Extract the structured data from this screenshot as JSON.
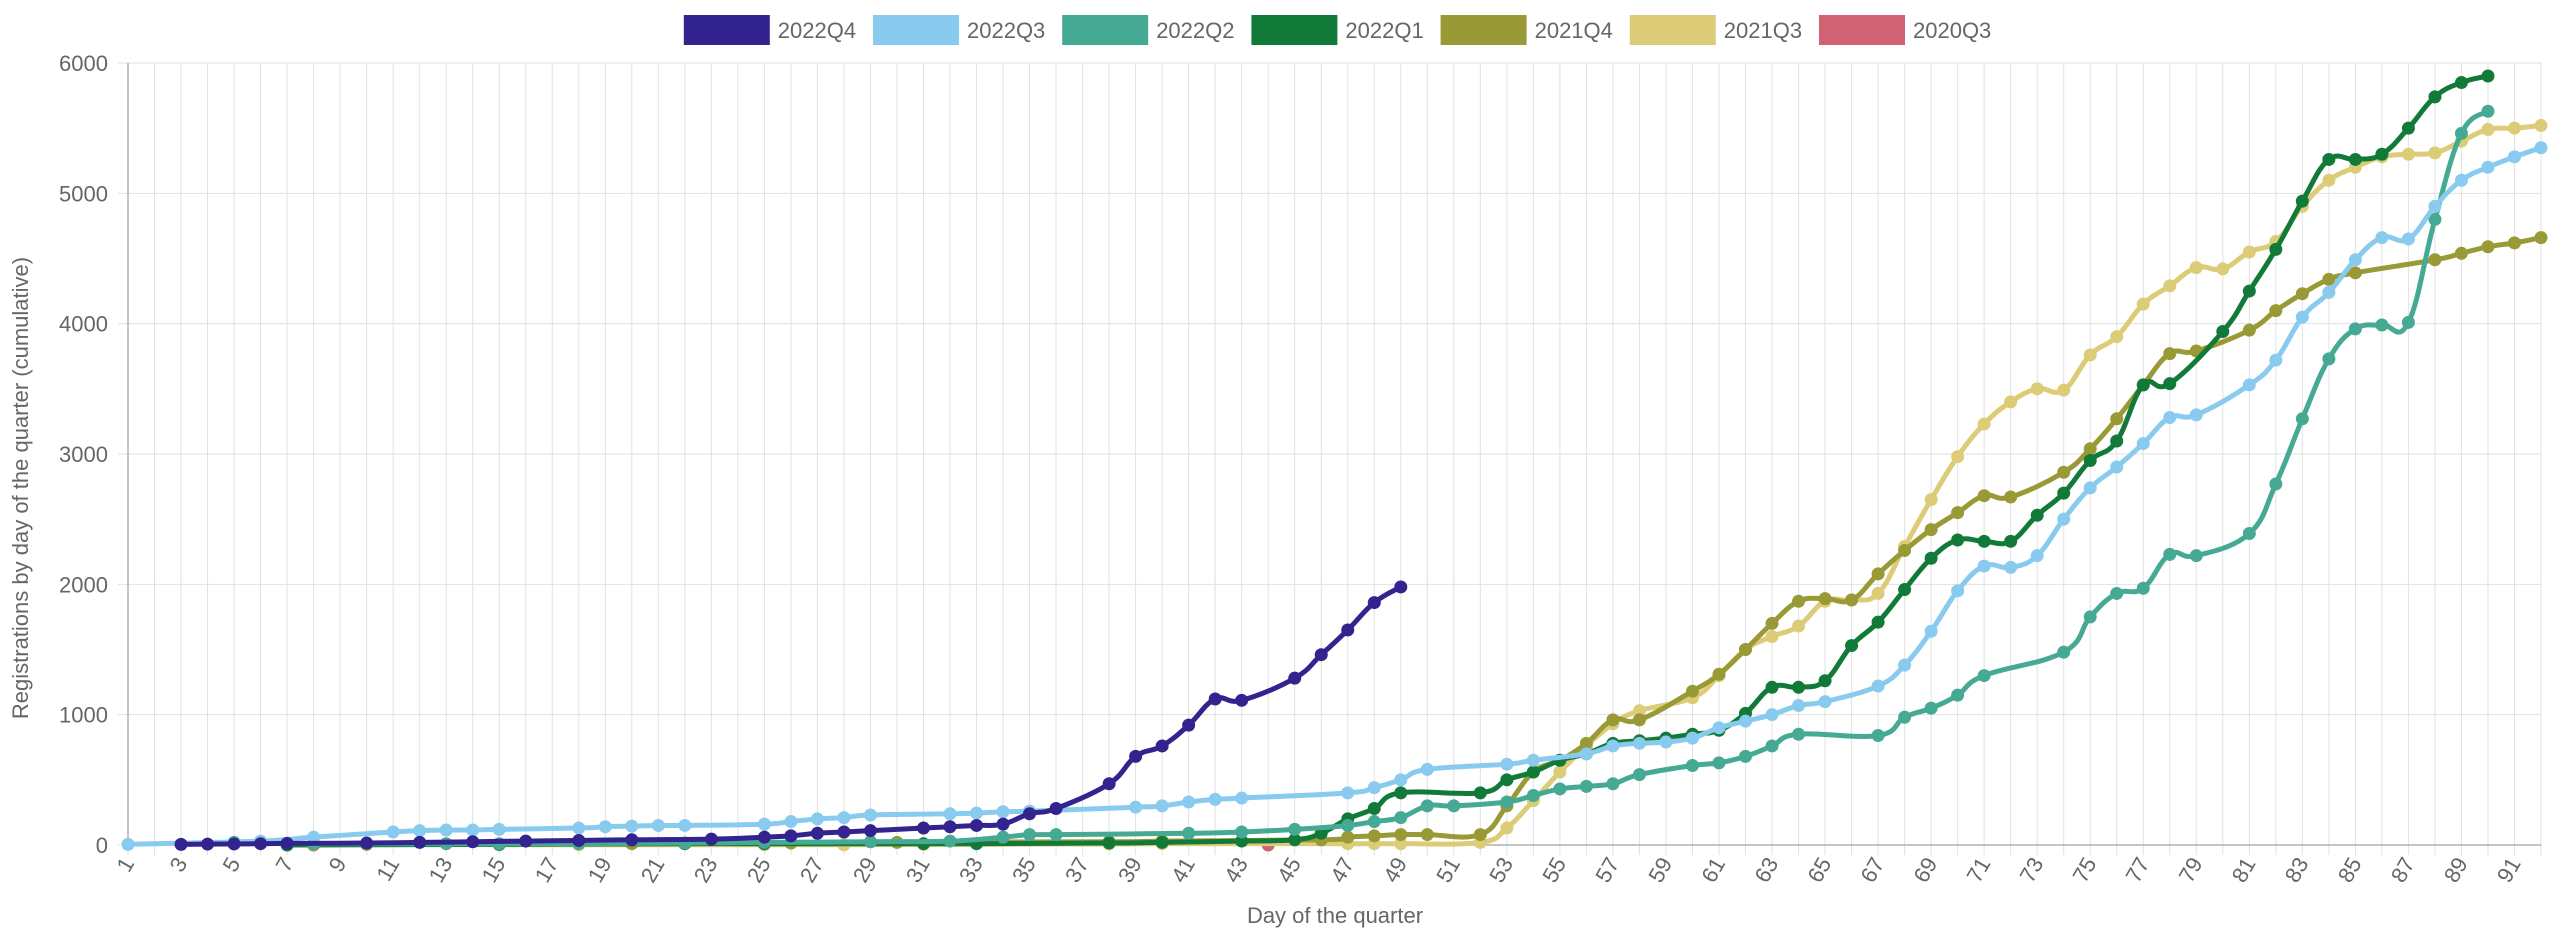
{
  "chart_data": {
    "type": "line",
    "title": "",
    "xlabel": "Day of the quarter",
    "ylabel": "Registrations by day of the quarter (cumulative)",
    "xlim": [
      1,
      92
    ],
    "ylim": [
      0,
      6000
    ],
    "x_ticks": [
      1,
      3,
      5,
      7,
      9,
      11,
      13,
      15,
      17,
      19,
      21,
      23,
      25,
      27,
      29,
      31,
      33,
      35,
      37,
      39,
      41,
      43,
      45,
      47,
      49,
      51,
      53,
      55,
      57,
      59,
      61,
      63,
      65,
      67,
      69,
      71,
      73,
      75,
      77,
      79,
      81,
      83,
      85,
      87,
      89,
      91
    ],
    "y_ticks": [
      0,
      1000,
      2000,
      3000,
      4000,
      5000,
      6000
    ],
    "grid": true,
    "legend_position": "top",
    "series": [
      {
        "name": "2022Q4",
        "color": "#32238f",
        "points": [
          [
            3,
            5
          ],
          [
            4,
            7
          ],
          [
            5,
            8
          ],
          [
            6,
            10
          ],
          [
            7,
            12
          ],
          [
            10,
            15
          ],
          [
            12,
            20
          ],
          [
            14,
            25
          ],
          [
            16,
            30
          ],
          [
            18,
            35
          ],
          [
            20,
            40
          ],
          [
            23,
            45
          ],
          [
            25,
            60
          ],
          [
            26,
            70
          ],
          [
            27,
            90
          ],
          [
            28,
            100
          ],
          [
            29,
            110
          ],
          [
            31,
            130
          ],
          [
            32,
            140
          ],
          [
            33,
            150
          ],
          [
            34,
            160
          ],
          [
            35,
            240
          ],
          [
            36,
            280
          ],
          [
            38,
            470
          ],
          [
            39,
            680
          ],
          [
            40,
            760
          ],
          [
            41,
            920
          ],
          [
            42,
            1120
          ],
          [
            43,
            1110
          ],
          [
            45,
            1280
          ],
          [
            46,
            1460
          ],
          [
            47,
            1650
          ],
          [
            48,
            1860
          ],
          [
            49,
            1980
          ]
        ]
      },
      {
        "name": "2022Q3",
        "color": "#88cbee",
        "points": [
          [
            1,
            5
          ],
          [
            6,
            30
          ],
          [
            8,
            60
          ],
          [
            11,
            100
          ],
          [
            12,
            110
          ],
          [
            13,
            115
          ],
          [
            14,
            115
          ],
          [
            15,
            120
          ],
          [
            18,
            130
          ],
          [
            19,
            140
          ],
          [
            20,
            145
          ],
          [
            21,
            150
          ],
          [
            22,
            150
          ],
          [
            25,
            160
          ],
          [
            26,
            180
          ],
          [
            27,
            200
          ],
          [
            28,
            210
          ],
          [
            29,
            230
          ],
          [
            32,
            240
          ],
          [
            33,
            245
          ],
          [
            34,
            255
          ],
          [
            35,
            260
          ],
          [
            39,
            290
          ],
          [
            40,
            300
          ],
          [
            41,
            330
          ],
          [
            42,
            350
          ],
          [
            43,
            360
          ],
          [
            47,
            400
          ],
          [
            48,
            440
          ],
          [
            49,
            500
          ],
          [
            50,
            580
          ],
          [
            53,
            620
          ],
          [
            54,
            650
          ],
          [
            56,
            700
          ],
          [
            57,
            760
          ],
          [
            58,
            780
          ],
          [
            59,
            790
          ],
          [
            60,
            820
          ],
          [
            61,
            900
          ],
          [
            62,
            950
          ],
          [
            63,
            1000
          ],
          [
            64,
            1070
          ],
          [
            65,
            1100
          ],
          [
            67,
            1220
          ],
          [
            68,
            1380
          ],
          [
            69,
            1640
          ],
          [
            70,
            1950
          ],
          [
            71,
            2140
          ],
          [
            72,
            2130
          ],
          [
            73,
            2220
          ],
          [
            74,
            2500
          ],
          [
            75,
            2740
          ],
          [
            76,
            2900
          ],
          [
            77,
            3080
          ],
          [
            78,
            3280
          ],
          [
            79,
            3300
          ],
          [
            81,
            3530
          ],
          [
            82,
            3720
          ],
          [
            83,
            4050
          ],
          [
            84,
            4240
          ],
          [
            85,
            4490
          ],
          [
            86,
            4660
          ],
          [
            87,
            4650
          ],
          [
            88,
            4900
          ],
          [
            89,
            5100
          ],
          [
            90,
            5200
          ],
          [
            91,
            5280
          ],
          [
            92,
            5350
          ]
        ]
      },
      {
        "name": "2022Q2",
        "color": "#45a994",
        "points": [
          [
            5,
            20
          ],
          [
            6,
            20
          ],
          [
            8,
            10
          ],
          [
            13,
            10
          ],
          [
            15,
            10
          ],
          [
            18,
            10
          ],
          [
            22,
            15
          ],
          [
            25,
            20
          ],
          [
            29,
            25
          ],
          [
            32,
            30
          ],
          [
            34,
            60
          ],
          [
            35,
            80
          ],
          [
            36,
            80
          ],
          [
            41,
            90
          ],
          [
            43,
            100
          ],
          [
            45,
            120
          ],
          [
            47,
            150
          ],
          [
            48,
            180
          ],
          [
            49,
            210
          ],
          [
            50,
            300
          ],
          [
            51,
            300
          ],
          [
            53,
            330
          ],
          [
            54,
            380
          ],
          [
            55,
            430
          ],
          [
            56,
            450
          ],
          [
            57,
            470
          ],
          [
            58,
            540
          ],
          [
            60,
            610
          ],
          [
            61,
            630
          ],
          [
            62,
            680
          ],
          [
            63,
            760
          ],
          [
            64,
            850
          ],
          [
            67,
            840
          ],
          [
            68,
            980
          ],
          [
            69,
            1050
          ],
          [
            70,
            1150
          ],
          [
            71,
            1300
          ],
          [
            74,
            1480
          ],
          [
            75,
            1750
          ],
          [
            76,
            1930
          ],
          [
            77,
            1970
          ],
          [
            78,
            2230
          ],
          [
            79,
            2220
          ],
          [
            81,
            2390
          ],
          [
            82,
            2770
          ],
          [
            83,
            3270
          ],
          [
            84,
            3730
          ],
          [
            85,
            3960
          ],
          [
            86,
            3990
          ],
          [
            87,
            4010
          ],
          [
            88,
            4800
          ],
          [
            89,
            5460
          ],
          [
            90,
            5630
          ]
        ]
      },
      {
        "name": "2022Q1",
        "color": "#127a38",
        "points": [
          [
            7,
            0
          ],
          [
            15,
            5
          ],
          [
            22,
            10
          ],
          [
            25,
            10
          ],
          [
            31,
            10
          ],
          [
            33,
            10
          ],
          [
            38,
            15
          ],
          [
            40,
            20
          ],
          [
            43,
            30
          ],
          [
            45,
            40
          ],
          [
            46,
            90
          ],
          [
            47,
            200
          ],
          [
            48,
            280
          ],
          [
            49,
            400
          ],
          [
            52,
            400
          ],
          [
            53,
            500
          ],
          [
            54,
            560
          ],
          [
            55,
            650
          ],
          [
            56,
            700
          ],
          [
            57,
            780
          ],
          [
            58,
            800
          ],
          [
            59,
            820
          ],
          [
            60,
            850
          ],
          [
            61,
            880
          ],
          [
            62,
            1010
          ],
          [
            63,
            1210
          ],
          [
            64,
            1210
          ],
          [
            65,
            1260
          ],
          [
            66,
            1530
          ],
          [
            67,
            1710
          ],
          [
            68,
            1960
          ],
          [
            69,
            2200
          ],
          [
            70,
            2340
          ],
          [
            71,
            2330
          ],
          [
            72,
            2330
          ],
          [
            73,
            2530
          ],
          [
            74,
            2700
          ],
          [
            75,
            2950
          ],
          [
            76,
            3100
          ],
          [
            77,
            3530
          ],
          [
            78,
            3540
          ],
          [
            80,
            3940
          ],
          [
            81,
            4250
          ],
          [
            82,
            4570
          ],
          [
            83,
            4940
          ],
          [
            84,
            5260
          ],
          [
            85,
            5260
          ],
          [
            86,
            5300
          ],
          [
            87,
            5500
          ],
          [
            88,
            5740
          ],
          [
            89,
            5850
          ],
          [
            90,
            5900
          ]
        ]
      },
      {
        "name": "2021Q4",
        "color": "#999936",
        "points": [
          [
            8,
            0
          ],
          [
            10,
            5
          ],
          [
            15,
            8
          ],
          [
            20,
            10
          ],
          [
            22,
            12
          ],
          [
            26,
            15
          ],
          [
            30,
            20
          ],
          [
            38,
            25
          ],
          [
            40,
            30
          ],
          [
            46,
            40
          ],
          [
            47,
            60
          ],
          [
            48,
            70
          ],
          [
            49,
            80
          ],
          [
            50,
            80
          ],
          [
            52,
            80
          ],
          [
            53,
            300
          ],
          [
            54,
            560
          ],
          [
            55,
            650
          ],
          [
            56,
            780
          ],
          [
            57,
            960
          ],
          [
            58,
            960
          ],
          [
            60,
            1180
          ],
          [
            61,
            1310
          ],
          [
            62,
            1500
          ],
          [
            63,
            1700
          ],
          [
            64,
            1870
          ],
          [
            65,
            1890
          ],
          [
            66,
            1880
          ],
          [
            67,
            2080
          ],
          [
            68,
            2260
          ],
          [
            69,
            2420
          ],
          [
            70,
            2550
          ],
          [
            71,
            2680
          ],
          [
            72,
            2670
          ],
          [
            74,
            2860
          ],
          [
            75,
            3040
          ],
          [
            76,
            3270
          ],
          [
            77,
            3530
          ],
          [
            78,
            3770
          ],
          [
            79,
            3790
          ],
          [
            81,
            3950
          ],
          [
            82,
            4100
          ],
          [
            83,
            4230
          ],
          [
            84,
            4340
          ],
          [
            85,
            4390
          ],
          [
            88,
            4490
          ],
          [
            89,
            4540
          ],
          [
            90,
            4590
          ],
          [
            91,
            4620
          ],
          [
            92,
            4660
          ]
        ]
      },
      {
        "name": "2021Q3",
        "color": "#dccb77",
        "points": [
          [
            15,
            2
          ],
          [
            18,
            2
          ],
          [
            25,
            2
          ],
          [
            28,
            2
          ],
          [
            31,
            5
          ],
          [
            38,
            8
          ],
          [
            40,
            10
          ],
          [
            47,
            10
          ],
          [
            48,
            10
          ],
          [
            49,
            10
          ],
          [
            52,
            20
          ],
          [
            53,
            130
          ],
          [
            54,
            340
          ],
          [
            55,
            560
          ],
          [
            56,
            760
          ],
          [
            57,
            930
          ],
          [
            58,
            1030
          ],
          [
            60,
            1130
          ],
          [
            61,
            1300
          ],
          [
            62,
            1500
          ],
          [
            63,
            1600
          ],
          [
            64,
            1680
          ],
          [
            65,
            1870
          ],
          [
            66,
            1880
          ],
          [
            67,
            1930
          ],
          [
            68,
            2290
          ],
          [
            69,
            2650
          ],
          [
            70,
            2980
          ],
          [
            71,
            3230
          ],
          [
            72,
            3400
          ],
          [
            73,
            3500
          ],
          [
            74,
            3490
          ],
          [
            75,
            3760
          ],
          [
            76,
            3900
          ],
          [
            77,
            4150
          ],
          [
            78,
            4290
          ],
          [
            79,
            4430
          ],
          [
            80,
            4420
          ],
          [
            81,
            4550
          ],
          [
            82,
            4630
          ],
          [
            83,
            4900
          ],
          [
            84,
            5100
          ],
          [
            85,
            5200
          ],
          [
            86,
            5280
          ],
          [
            87,
            5300
          ],
          [
            88,
            5310
          ],
          [
            89,
            5400
          ],
          [
            90,
            5490
          ],
          [
            91,
            5500
          ],
          [
            92,
            5520
          ]
        ]
      },
      {
        "name": "2020Q3",
        "color": "#cf6374",
        "points": [
          [
            44,
            0
          ]
        ]
      }
    ]
  }
}
